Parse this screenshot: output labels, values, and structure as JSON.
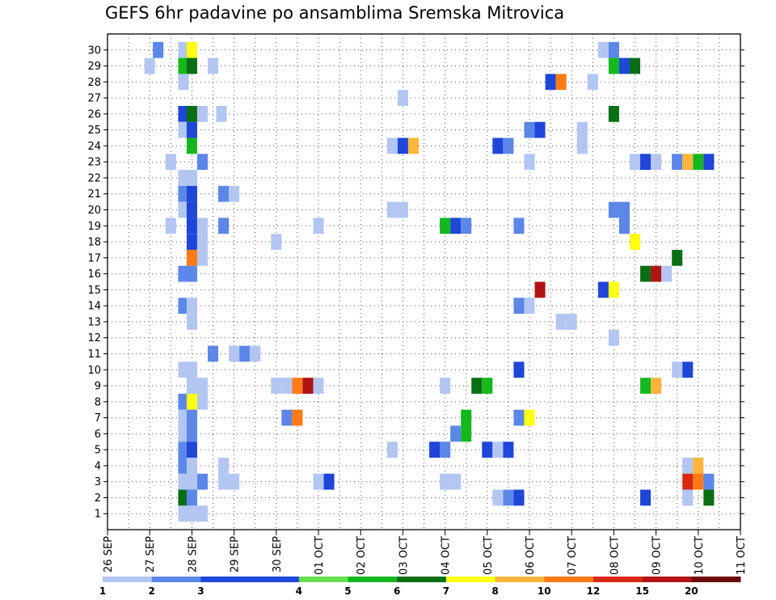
{
  "chart_data": {
    "type": "heatmap",
    "title": "GEFS 6hr padavine po ansamblima Sremska Mitrovica",
    "y_ticks": [
      1,
      2,
      3,
      4,
      5,
      6,
      7,
      8,
      9,
      10,
      11,
      12,
      13,
      14,
      15,
      16,
      17,
      18,
      19,
      20,
      21,
      22,
      23,
      24,
      25,
      26,
      27,
      28,
      29,
      30
    ],
    "ylim": [
      0,
      31
    ],
    "x_ticks": [
      "26 SEP",
      "27 SEP",
      "28 SEP",
      "29 SEP",
      "30 SEP",
      "01 OCT",
      "02 OCT",
      "03 OCT",
      "04 OCT",
      "05 OCT",
      "06 OCT",
      "07 OCT",
      "08 OCT",
      "09 OCT",
      "10 OCT",
      "11 OCT"
    ],
    "x_range_days": [
      0,
      15
    ],
    "grid": true,
    "colorbar": {
      "labels": [
        "1",
        "2",
        "3",
        "4",
        "5",
        "6",
        "7",
        "8",
        "10",
        "12",
        "15",
        "20"
      ],
      "colors": [
        "#b3c6f2",
        "#5c86e8",
        "#1e46d9",
        "#1e46d9",
        "#66e052",
        "#14b81e",
        "#0a6e14",
        "#ffff14",
        "#ffb43c",
        "#ff7a14",
        "#d92814",
        "#b01414",
        "#6e0a0a"
      ]
    },
    "levels": [
      1,
      2,
      3,
      4,
      5,
      6,
      7,
      8,
      10,
      12,
      15,
      20
    ],
    "cells": [
      [
        29,
        1.0,
        "1"
      ],
      [
        30,
        1.2,
        "2"
      ],
      [
        30,
        1.8,
        "1"
      ],
      [
        30,
        2.0,
        "7"
      ],
      [
        29,
        1.8,
        "5"
      ],
      [
        29,
        2.0,
        "6"
      ],
      [
        29,
        2.5,
        "1"
      ],
      [
        28,
        1.8,
        "1"
      ],
      [
        26,
        1.8,
        "3"
      ],
      [
        26,
        2.0,
        "6"
      ],
      [
        26,
        2.25,
        "1"
      ],
      [
        26,
        2.7,
        "1"
      ],
      [
        25,
        1.8,
        "1"
      ],
      [
        25,
        2.0,
        "3"
      ],
      [
        24,
        2.0,
        "5"
      ],
      [
        23,
        1.5,
        "1"
      ],
      [
        23,
        2.25,
        "2"
      ],
      [
        22,
        1.8,
        "1"
      ],
      [
        22,
        2.0,
        "1"
      ],
      [
        21,
        1.8,
        "2"
      ],
      [
        21,
        2.0,
        "3"
      ],
      [
        21,
        2.75,
        "2"
      ],
      [
        21,
        3.0,
        "1"
      ],
      [
        20,
        1.8,
        "1"
      ],
      [
        20,
        2.0,
        "3"
      ],
      [
        19,
        1.5,
        "1"
      ],
      [
        19,
        2.0,
        "3"
      ],
      [
        19,
        2.25,
        "1"
      ],
      [
        19,
        2.75,
        "2"
      ],
      [
        18,
        2.0,
        "3"
      ],
      [
        18,
        2.25,
        "1"
      ],
      [
        17,
        2.0,
        "10"
      ],
      [
        17,
        2.25,
        "1"
      ],
      [
        16,
        1.8,
        "2"
      ],
      [
        16,
        2.0,
        "2"
      ],
      [
        14,
        1.8,
        "2"
      ],
      [
        14,
        2.0,
        "1"
      ],
      [
        13,
        2.0,
        "1"
      ],
      [
        11,
        2.5,
        "2"
      ],
      [
        11,
        3.0,
        "1"
      ],
      [
        11,
        3.25,
        "2"
      ],
      [
        11,
        3.5,
        "1"
      ],
      [
        10,
        1.8,
        "1"
      ],
      [
        10,
        2.0,
        "1"
      ],
      [
        9,
        2.0,
        "1"
      ],
      [
        9,
        2.25,
        "1"
      ],
      [
        8,
        1.8,
        "2"
      ],
      [
        8,
        2.0,
        "7"
      ],
      [
        8,
        2.25,
        "1"
      ],
      [
        7,
        1.8,
        "1"
      ],
      [
        7,
        2.0,
        "2"
      ],
      [
        6,
        1.8,
        "1"
      ],
      [
        6,
        2.0,
        "2"
      ],
      [
        5,
        1.8,
        "2"
      ],
      [
        5,
        2.0,
        "3"
      ],
      [
        4,
        1.8,
        "2"
      ],
      [
        4,
        2.0,
        "1"
      ],
      [
        4,
        2.75,
        "1"
      ],
      [
        3,
        1.8,
        "1"
      ],
      [
        3,
        2.0,
        "1"
      ],
      [
        3,
        2.25,
        "2"
      ],
      [
        3,
        2.75,
        "1"
      ],
      [
        3,
        3.0,
        "1"
      ],
      [
        2,
        1.8,
        "6"
      ],
      [
        2,
        2.0,
        "2"
      ],
      [
        1,
        1.8,
        "1"
      ],
      [
        1,
        2.0,
        "1"
      ],
      [
        1,
        2.25,
        "1"
      ],
      [
        19,
        5.0,
        "1"
      ],
      [
        18,
        4.0,
        "1"
      ],
      [
        9,
        4.0,
        "1"
      ],
      [
        9,
        4.25,
        "1"
      ],
      [
        9,
        4.5,
        "10"
      ],
      [
        9,
        4.75,
        "15"
      ],
      [
        9,
        5.0,
        "1"
      ],
      [
        7,
        4.25,
        "2"
      ],
      [
        7,
        4.5,
        "10"
      ],
      [
        3,
        5.0,
        "1"
      ],
      [
        3,
        5.25,
        "3"
      ],
      [
        27,
        7.0,
        "1"
      ],
      [
        24,
        6.75,
        "1"
      ],
      [
        24,
        7.0,
        "3"
      ],
      [
        24,
        7.25,
        "8"
      ],
      [
        20,
        6.75,
        "1"
      ],
      [
        20,
        7.0,
        "1"
      ],
      [
        19,
        8.0,
        "5"
      ],
      [
        19,
        8.25,
        "3"
      ],
      [
        19,
        8.5,
        "2"
      ],
      [
        9,
        8.0,
        "1"
      ],
      [
        9,
        8.75,
        "6"
      ],
      [
        9,
        9.0,
        "5"
      ],
      [
        7,
        8.5,
        "5"
      ],
      [
        6,
        8.25,
        "2"
      ],
      [
        6,
        8.5,
        "5"
      ],
      [
        5,
        6.75,
        "1"
      ],
      [
        5,
        7.75,
        "3"
      ],
      [
        5,
        8.0,
        "2"
      ],
      [
        5,
        9.0,
        "3"
      ],
      [
        5,
        9.25,
        "1"
      ],
      [
        5,
        9.5,
        "3"
      ],
      [
        3,
        8.0,
        "1"
      ],
      [
        3,
        8.25,
        "1"
      ],
      [
        24,
        9.25,
        "3"
      ],
      [
        24,
        9.5,
        "2"
      ],
      [
        25,
        10.0,
        "2"
      ],
      [
        25,
        10.25,
        "3"
      ],
      [
        23,
        10.0,
        "1"
      ],
      [
        19,
        9.75,
        "2"
      ],
      [
        14,
        9.75,
        "2"
      ],
      [
        14,
        10.0,
        "1"
      ],
      [
        13,
        10.75,
        "1"
      ],
      [
        13,
        11.0,
        "1"
      ],
      [
        15,
        10.25,
        "15"
      ],
      [
        10,
        9.75,
        "3"
      ],
      [
        7,
        9.75,
        "2"
      ],
      [
        7,
        10.0,
        "7"
      ],
      [
        2,
        9.25,
        "1"
      ],
      [
        2,
        9.5,
        "2"
      ],
      [
        2,
        9.75,
        "3"
      ],
      [
        28,
        10.5,
        "3"
      ],
      [
        28,
        10.75,
        "10"
      ],
      [
        28,
        11.5,
        "1"
      ],
      [
        25,
        11.25,
        "1"
      ],
      [
        24,
        11.25,
        "1"
      ],
      [
        30,
        11.75,
        "1"
      ],
      [
        30,
        12.0,
        "2"
      ],
      [
        29,
        12.0,
        "5"
      ],
      [
        29,
        12.25,
        "3"
      ],
      [
        29,
        12.5,
        "6"
      ],
      [
        26,
        12.0,
        "6"
      ],
      [
        23,
        12.5,
        "1"
      ],
      [
        23,
        12.75,
        "3"
      ],
      [
        23,
        13.0,
        "1"
      ],
      [
        23,
        13.5,
        "2"
      ],
      [
        23,
        13.75,
        "8"
      ],
      [
        23,
        14.0,
        "5"
      ],
      [
        23,
        14.25,
        "3"
      ],
      [
        20,
        12.0,
        "2"
      ],
      [
        20,
        12.25,
        "2"
      ],
      [
        19,
        12.25,
        "2"
      ],
      [
        18,
        12.5,
        "7"
      ],
      [
        17,
        13.5,
        "6"
      ],
      [
        16,
        12.75,
        "6"
      ],
      [
        16,
        13.0,
        "15"
      ],
      [
        16,
        13.25,
        "1"
      ],
      [
        15,
        11.75,
        "3"
      ],
      [
        15,
        12.0,
        "7"
      ],
      [
        12,
        12.0,
        "1"
      ],
      [
        10,
        13.5,
        "1"
      ],
      [
        10,
        13.75,
        "3"
      ],
      [
        9,
        12.75,
        "5"
      ],
      [
        9,
        13.0,
        "8"
      ],
      [
        4,
        13.75,
        "1"
      ],
      [
        4,
        14.0,
        "8"
      ],
      [
        3,
        13.75,
        "12"
      ],
      [
        3,
        14.0,
        "10"
      ],
      [
        3,
        14.25,
        "2"
      ],
      [
        2,
        12.75,
        "3"
      ],
      [
        2,
        13.75,
        "1"
      ],
      [
        2,
        14.25,
        "6"
      ]
    ]
  }
}
